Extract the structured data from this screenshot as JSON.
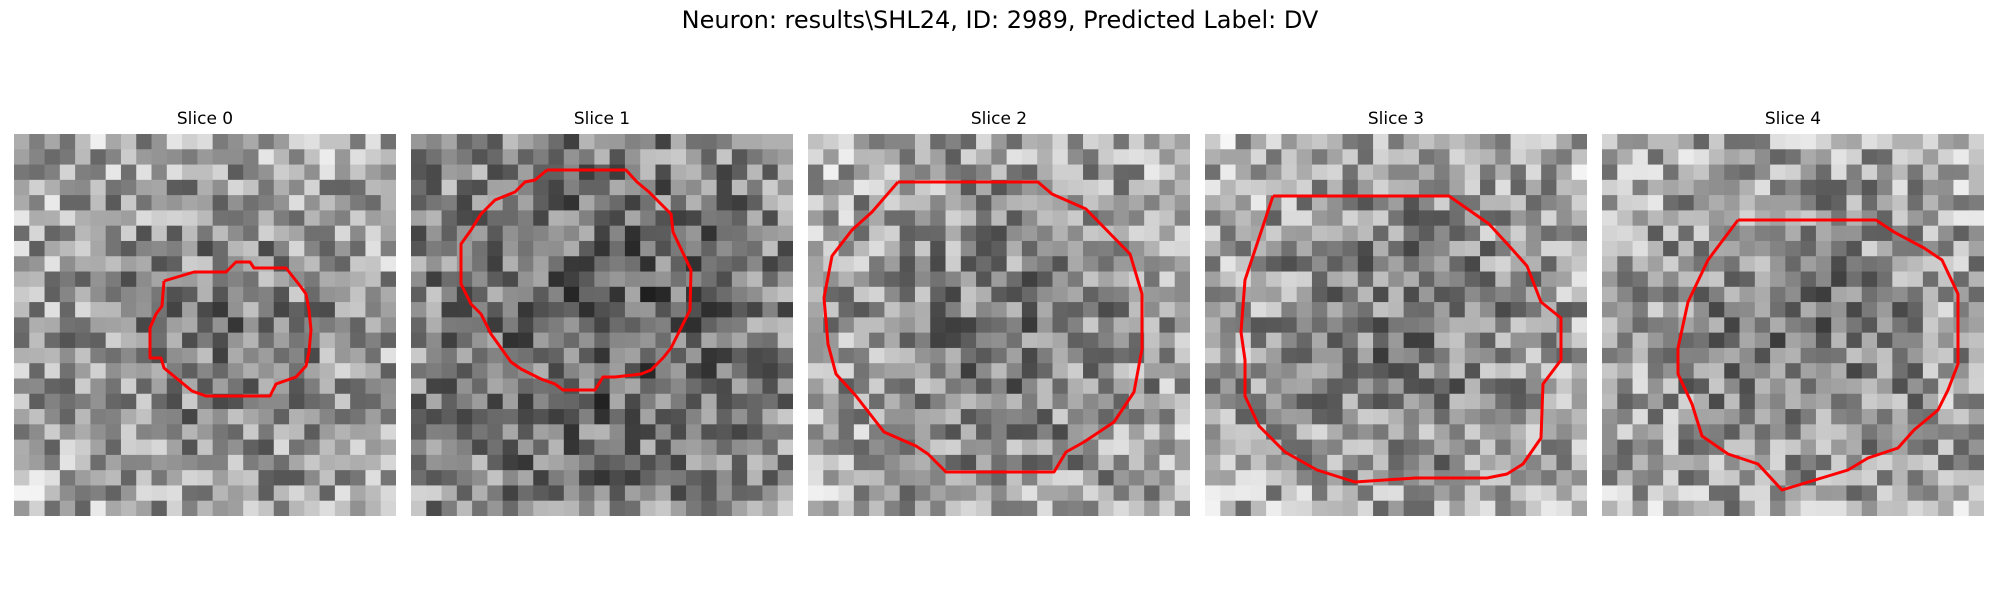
{
  "figure": {
    "title": "Neuron: results\\SHL24, ID: 2989, Predicted Label: DV"
  },
  "slices": [
    {
      "title": "Slice 0"
    },
    {
      "title": "Slice 1"
    },
    {
      "title": "Slice 2"
    },
    {
      "title": "Slice 3"
    },
    {
      "title": "Slice 4"
    }
  ],
  "colors": {
    "contour": "#ff0000",
    "background": "#ffffff"
  }
}
